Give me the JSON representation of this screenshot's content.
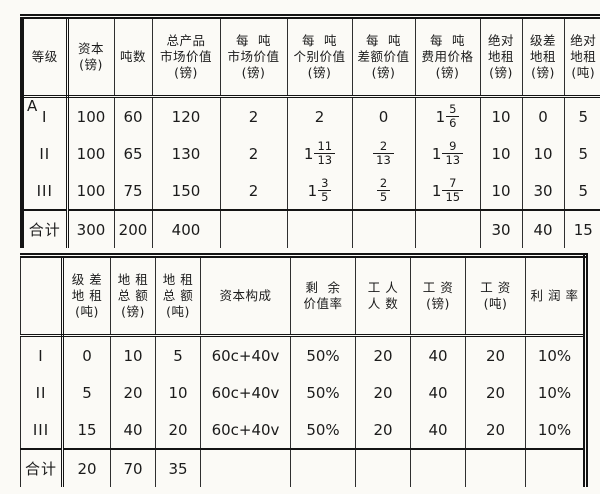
{
  "document": {
    "kind": "scanned-statistical-tables",
    "language": "zh",
    "ink_color": "#1b1b1b",
    "paper_color": "#fbfaf6"
  },
  "tables": [
    {
      "id": "upper",
      "title_semantic": "market-value-and-rent-by-land-grade",
      "columns": [
        {
          "label": "等级",
          "lines": [
            "等级"
          ]
        },
        {
          "label": "资本(镑)",
          "lines": [
            "资本",
            "(镑)"
          ]
        },
        {
          "label": "吨数",
          "lines": [
            "吨数"
          ]
        },
        {
          "label": "总产品市场价值(镑)",
          "lines": [
            "总产品",
            "市场价值",
            "(镑)"
          ]
        },
        {
          "label": "每吨市场价值(镑)",
          "lines": [
            "每  吨",
            "市场价值",
            "(镑)"
          ]
        },
        {
          "label": "每吨个别价值(镑)",
          "lines": [
            "每  吨",
            "个别价值",
            "(镑)"
          ]
        },
        {
          "label": "每吨差额价值(镑)",
          "lines": [
            "每  吨",
            "差额价值",
            "(镑)"
          ]
        },
        {
          "label": "每吨费用价格(镑)",
          "lines": [
            "每  吨",
            "费用价格",
            "(镑)"
          ]
        },
        {
          "label": "绝对地租(镑)",
          "lines": [
            "绝对",
            "地租",
            "(镑)"
          ]
        },
        {
          "label": "级差地租(镑)",
          "lines": [
            "级差",
            "地租",
            "(镑)"
          ]
        },
        {
          "label": "绝对地租(吨)",
          "lines": [
            "绝对",
            "地租",
            "(吨)"
          ]
        }
      ],
      "rows": [
        {
          "corner": "A",
          "label": "I",
          "total": false,
          "cells": [
            "100",
            "60",
            "120",
            "2",
            "2",
            "0",
            "1 5/6",
            "10",
            "0",
            "5"
          ]
        },
        {
          "corner": "",
          "label": "II",
          "total": false,
          "cells": [
            "100",
            "65",
            "130",
            "2",
            "1 11/13",
            "2/13",
            "1 9/13",
            "10",
            "10",
            "5"
          ]
        },
        {
          "corner": "",
          "label": "III",
          "total": false,
          "cells": [
            "100",
            "75",
            "150",
            "2",
            "1 3/5",
            "2/5",
            "1 7/15",
            "10",
            "30",
            "5"
          ]
        },
        {
          "corner": "",
          "label": "合计",
          "total": true,
          "cells": [
            "300",
            "200",
            "400",
            "",
            "",
            "",
            "",
            "30",
            "40",
            "15"
          ]
        }
      ]
    },
    {
      "id": "lower",
      "title_semantic": "rent-totals-capital-composition-wages-profit",
      "columns": [
        {
          "label": "",
          "lines": [
            ""
          ]
        },
        {
          "label": "级差地租(吨)",
          "lines": [
            "级 差",
            "地 租",
            "(吨)"
          ]
        },
        {
          "label": "地租总额(镑)",
          "lines": [
            "地 租",
            "总 额",
            "(镑)"
          ]
        },
        {
          "label": "地租总额(吨)",
          "lines": [
            "地 租",
            "总 额",
            "(吨)"
          ]
        },
        {
          "label": "资本构成",
          "lines": [
            "资本构成"
          ]
        },
        {
          "label": "剩余价值率",
          "lines": [
            "剩  余",
            "价值率"
          ]
        },
        {
          "label": "工人人数",
          "lines": [
            "工 人",
            "人 数"
          ]
        },
        {
          "label": "工资(镑)",
          "lines": [
            "工 资",
            "(镑)"
          ]
        },
        {
          "label": "工资(吨)",
          "lines": [
            "工 资",
            "(吨)"
          ]
        },
        {
          "label": "利润率",
          "lines": [
            "利 润 率"
          ]
        }
      ],
      "rows": [
        {
          "corner": "",
          "label": "I",
          "total": false,
          "cells": [
            "0",
            "10",
            "5",
            "60c+40v",
            "50%",
            "20",
            "40",
            "20",
            "10%"
          ]
        },
        {
          "corner": "",
          "label": "II",
          "total": false,
          "cells": [
            "5",
            "20",
            "10",
            "60c+40v",
            "50%",
            "20",
            "40",
            "20",
            "10%"
          ]
        },
        {
          "corner": "",
          "label": "III",
          "total": false,
          "cells": [
            "15",
            "40",
            "20",
            "60c+40v",
            "50%",
            "20",
            "40",
            "20",
            "10%"
          ]
        },
        {
          "corner": "",
          "label": "合计",
          "total": true,
          "cells": [
            "20",
            "70",
            "35",
            "",
            "",
            "",
            "",
            "",
            ""
          ]
        }
      ]
    }
  ]
}
